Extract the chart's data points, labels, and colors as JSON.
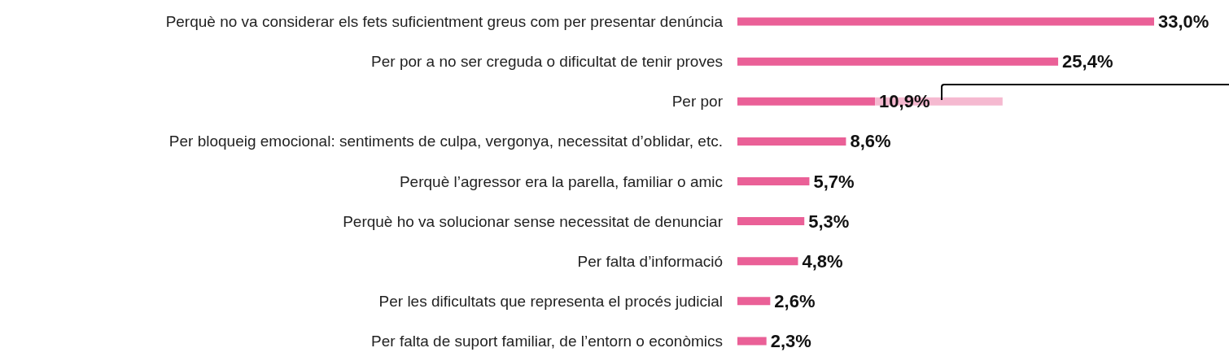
{
  "chart_data": {
    "type": "bar",
    "orientation": "horizontal",
    "stacked": true,
    "tick_labels": "y",
    "xlim": [
      0,
      33
    ],
    "categories": [
      "Perquè no va considerar els fets suficientment greus com per presentar denúncia",
      "Per por a no ser creguda o dificultat de tenir proves",
      "Per por",
      "Per bloqueig emocional: sentiments de culpa, vergonya, necessitat d’oblidar, etc.",
      "Perquè l’agressor era la parella, familiar o amic",
      "Perquè ho va solucionar sense necessitat de denunciar",
      "Per falta d’informació",
      "Per les dificultats que representa el procés judicial",
      "Per falta de suport familiar, de l’entorn o econòmics"
    ],
    "series": [
      {
        "color": "#ea6097",
        "values": [
          33.0,
          25.4,
          10.9,
          8.6,
          5.7,
          5.3,
          4.8,
          2.6,
          2.3
        ],
        "value_labels": [
          "33,0%",
          "25,4%",
          "10,9%",
          "8,6%",
          "5,7%",
          "5,3%",
          "4,8%",
          "2,6%",
          "2,3%"
        ]
      },
      {
        "color": "#f5b9d0",
        "values": [
          null,
          null,
          10.1,
          null,
          null,
          null,
          null,
          null,
          null
        ]
      }
    ]
  }
}
